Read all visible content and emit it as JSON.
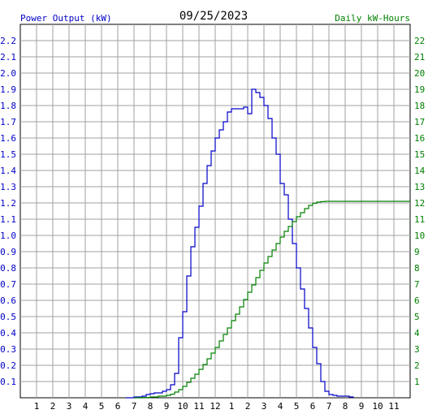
{
  "header": {
    "left_title": "Power Output (kW)",
    "date": "09/25/2023",
    "right_title": "Daily kW-Hours"
  },
  "colors": {
    "power": "#0000c8",
    "energy": "#008000",
    "grid": "#a0a0a0",
    "text": "#000000"
  },
  "chart_data": {
    "type": "line",
    "x_ticks": [
      "1",
      "2",
      "3",
      "4",
      "5",
      "6",
      "7",
      "8",
      "9",
      "10",
      "11",
      "12",
      "1",
      "2",
      "3",
      "4",
      "5",
      "6",
      "7",
      "8",
      "9",
      "10",
      "11"
    ],
    "x_range_hours": [
      0,
      24
    ],
    "y_left": {
      "label": "Power Output (kW)",
      "range": [
        0,
        2.3
      ],
      "ticks": [
        "0.1",
        "0.2",
        "0.3",
        "0.4",
        "0.5",
        "0.6",
        "0.7",
        "0.8",
        "0.9",
        "1.0",
        "1.1",
        "1.2",
        "1.3",
        "1.4",
        "1.5",
        "1.6",
        "1.7",
        "1.8",
        "1.9",
        "2.0",
        "2.1",
        "2.2"
      ]
    },
    "y_right": {
      "label": "Daily kW-Hours",
      "range": [
        0,
        23
      ],
      "ticks": [
        "1",
        "2",
        "3",
        "4",
        "5",
        "6",
        "7",
        "8",
        "9",
        "10",
        "11",
        "12",
        "13",
        "14",
        "15",
        "16",
        "17",
        "18",
        "19",
        "20",
        "21",
        "22"
      ]
    },
    "grid": true,
    "series": [
      {
        "name": "Power Output (kW)",
        "axis": "left",
        "step": true,
        "x": [
          6.5,
          7.0,
          7.5,
          7.75,
          8.0,
          8.25,
          8.5,
          8.75,
          9.0,
          9.25,
          9.5,
          9.75,
          10.0,
          10.25,
          10.5,
          10.75,
          11.0,
          11.25,
          11.5,
          11.75,
          12.0,
          12.25,
          12.5,
          12.75,
          13.0,
          13.25,
          13.5,
          13.75,
          14.0,
          14.25,
          14.5,
          14.75,
          15.0,
          15.25,
          15.5,
          15.75,
          16.0,
          16.25,
          16.5,
          16.75,
          17.0,
          17.25,
          17.5,
          17.75,
          18.0,
          18.25,
          18.5,
          18.75,
          19.0,
          19.25,
          19.5,
          19.75,
          20.0,
          20.25,
          20.5
        ],
        "values": [
          0.0,
          0.005,
          0.01,
          0.02,
          0.025,
          0.03,
          0.03,
          0.04,
          0.05,
          0.08,
          0.15,
          0.37,
          0.53,
          0.75,
          0.93,
          1.05,
          1.18,
          1.32,
          1.43,
          1.52,
          1.6,
          1.65,
          1.7,
          1.76,
          1.78,
          1.78,
          1.78,
          1.79,
          1.75,
          1.9,
          1.88,
          1.85,
          1.8,
          1.72,
          1.6,
          1.5,
          1.32,
          1.25,
          1.1,
          0.95,
          0.8,
          0.67,
          0.55,
          0.43,
          0.31,
          0.21,
          0.1,
          0.04,
          0.02,
          0.015,
          0.01,
          0.01,
          0.01,
          0.005,
          0.0
        ]
      },
      {
        "name": "Daily kW-Hours",
        "axis": "right",
        "step": true,
        "x": [
          7.0,
          7.5,
          8.0,
          8.5,
          9.0,
          9.25,
          9.5,
          9.75,
          10.0,
          10.25,
          10.5,
          10.75,
          11.0,
          11.25,
          11.5,
          11.75,
          12.0,
          12.25,
          12.5,
          12.75,
          13.0,
          13.25,
          13.5,
          13.75,
          14.0,
          14.25,
          14.5,
          14.75,
          15.0,
          15.25,
          15.5,
          15.75,
          16.0,
          16.25,
          16.5,
          16.75,
          17.0,
          17.25,
          17.5,
          17.75,
          18.0,
          18.25,
          18.5,
          18.75,
          19.0,
          19.5,
          20.0,
          24.0
        ],
        "values": [
          0.0,
          0.02,
          0.05,
          0.1,
          0.15,
          0.22,
          0.35,
          0.5,
          0.7,
          0.95,
          1.2,
          1.45,
          1.75,
          2.05,
          2.4,
          2.75,
          3.1,
          3.5,
          3.9,
          4.3,
          4.75,
          5.15,
          5.6,
          6.05,
          6.5,
          6.95,
          7.4,
          7.85,
          8.3,
          8.7,
          9.1,
          9.5,
          9.9,
          10.25,
          10.55,
          10.85,
          11.15,
          11.4,
          11.65,
          11.85,
          11.98,
          12.05,
          12.08,
          12.1,
          12.1,
          12.1,
          12.1,
          12.1
        ]
      }
    ]
  }
}
